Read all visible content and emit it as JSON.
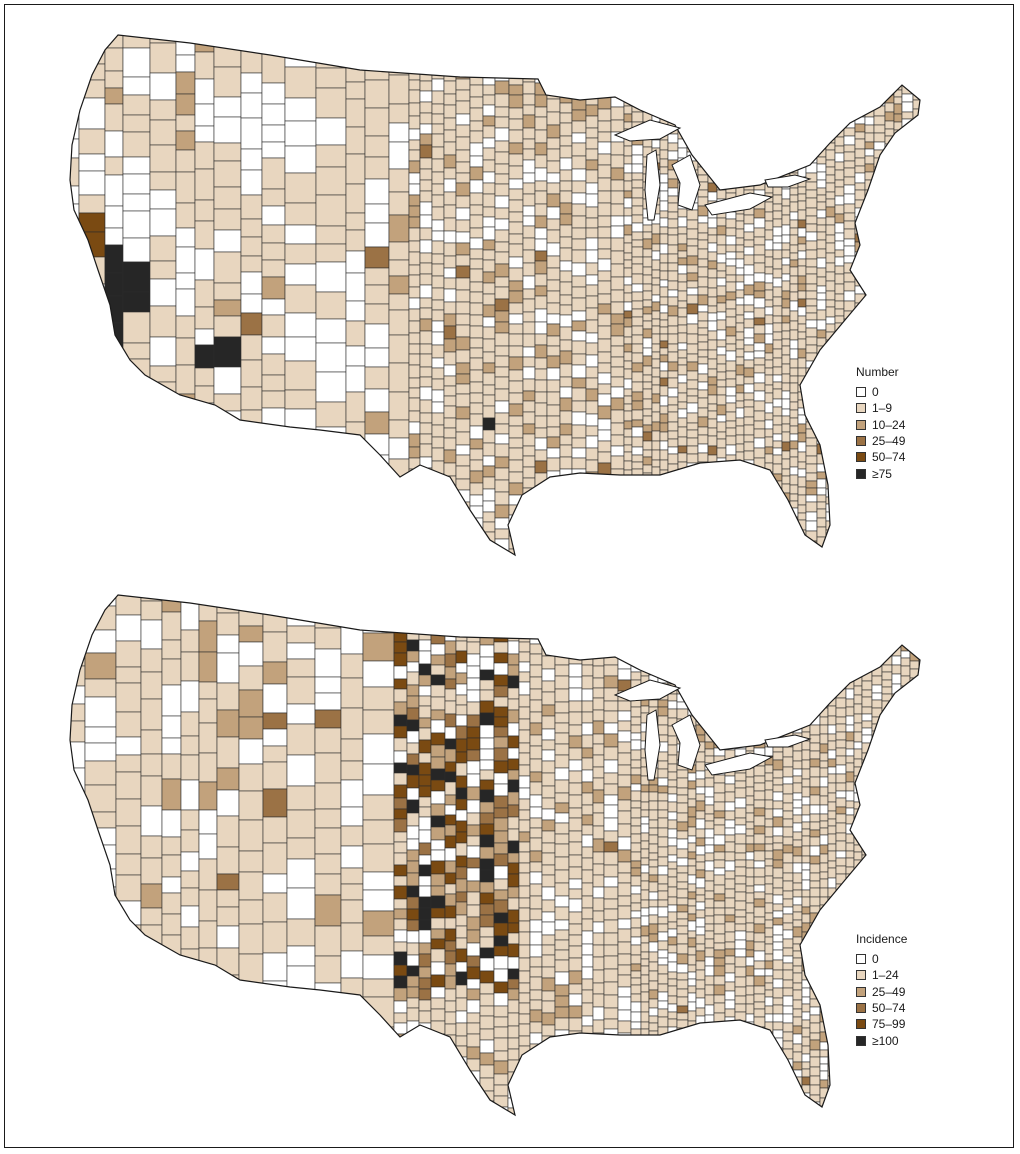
{
  "colors": {
    "class_0": "#ffffff",
    "class_1": "#e8d6bf",
    "class_2": "#c2a27c",
    "class_3": "#9b7245",
    "class_4": "#7a4a12",
    "class_5": "#262626",
    "border": "#2b2b2b"
  },
  "maps": [
    {
      "name": "number",
      "legend": {
        "title": "Number",
        "items": [
          {
            "label": "0",
            "color": "#ffffff"
          },
          {
            "label": "1–9",
            "color": "#e8d6bf"
          },
          {
            "label": "10–24",
            "color": "#c2a27c"
          },
          {
            "label": "25–49",
            "color": "#9b7245"
          },
          {
            "label": "50–74",
            "color": "#7a4a12"
          },
          {
            "label": "≥75",
            "color": "#262626"
          }
        ]
      }
    },
    {
      "name": "incidence",
      "legend": {
        "title": "Incidence",
        "items": [
          {
            "label": "0",
            "color": "#ffffff"
          },
          {
            "label": "1–24",
            "color": "#e8d6bf"
          },
          {
            "label": "25–49",
            "color": "#c2a27c"
          },
          {
            "label": "50–74",
            "color": "#9b7245"
          },
          {
            "label": "75–99",
            "color": "#7a4a12"
          },
          {
            "label": "≥100",
            "color": "#262626"
          }
        ]
      }
    }
  ]
}
